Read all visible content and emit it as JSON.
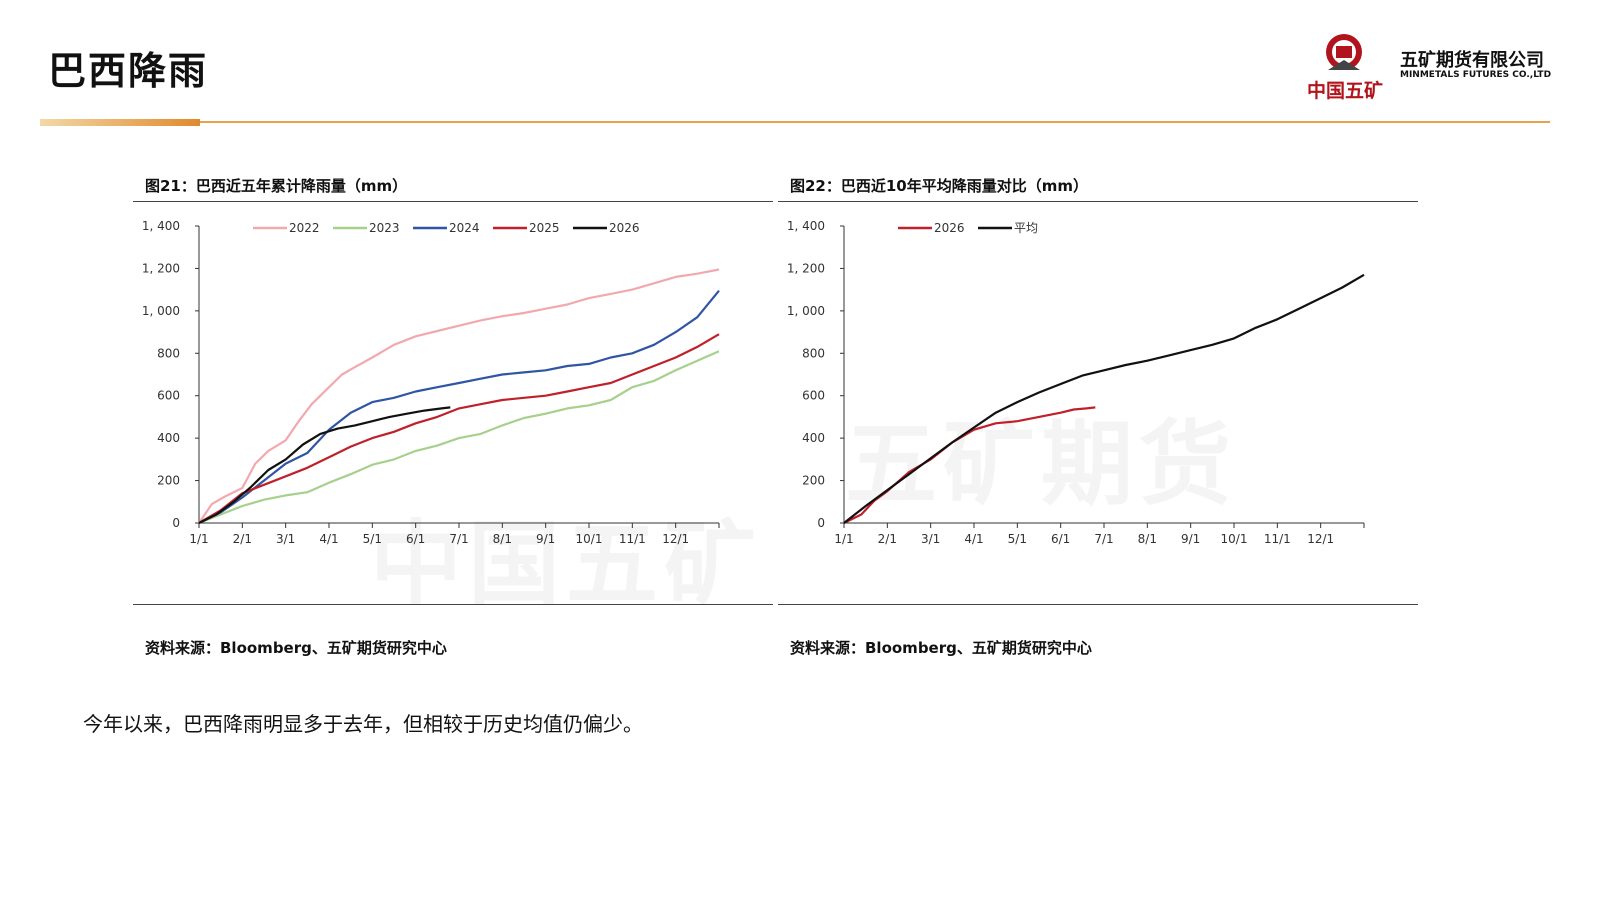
{
  "header": {
    "title": "巴西降雨"
  },
  "logo": {
    "cn": "中国五矿",
    "company_cn": "五矿期货有限公司",
    "company_en": "MINMETALS FUTURES CO.,LTD",
    "accent": "#b0141c"
  },
  "watermark": {
    "left": "中国五矿",
    "right": "五矿期货"
  },
  "charts": [
    {
      "title": "图21：巴西近五年累计降雨量（mm）",
      "source": "资料来源：Bloomberg、五矿期货研究中心"
    },
    {
      "title": "图22：巴西近10年平均降雨量对比（mm）",
      "source": "资料来源：Bloomberg、五矿期货研究中心"
    }
  ],
  "summary": "今年以来，巴西降雨明显多于去年，但相较于历史均值仍偏少。",
  "chart_data": [
    {
      "type": "line",
      "categories": [
        "1/1",
        "2/1",
        "3/1",
        "4/1",
        "5/1",
        "6/1",
        "7/1",
        "8/1",
        "9/1",
        "10/1",
        "11/1",
        "12/1"
      ],
      "ylim": [
        0,
        1400
      ],
      "yticks": [
        "0",
        "200",
        "400",
        "600",
        "800",
        "1, 000",
        "1, 200",
        "1, 400"
      ],
      "legend": "top",
      "series": [
        {
          "name": "2022",
          "color": "#f2a9ae",
          "x": [
            0,
            0.3,
            0.6,
            1,
            1.3,
            1.6,
            2,
            2.3,
            2.6,
            3,
            3.3,
            3.6,
            4,
            4.5,
            5,
            5.5,
            6,
            6.5,
            7,
            7.5,
            8,
            8.5,
            9,
            9.5,
            10,
            10.5,
            11,
            11.5,
            12
          ],
          "y": [
            0,
            90,
            125,
            165,
            280,
            340,
            390,
            480,
            560,
            640,
            700,
            735,
            780,
            840,
            880,
            905,
            930,
            955,
            975,
            990,
            1010,
            1030,
            1060,
            1080,
            1100,
            1130,
            1160,
            1175,
            1195
          ]
        },
        {
          "name": "2023",
          "color": "#a7d08c",
          "x": [
            0,
            1,
            1.5,
            2,
            2.5,
            3,
            3.5,
            4,
            4.5,
            5,
            5.5,
            6,
            6.5,
            7,
            7.5,
            8,
            8.5,
            9,
            9.5,
            10,
            10.5,
            11,
            11.5,
            12
          ],
          "y": [
            0,
            80,
            110,
            130,
            145,
            190,
            230,
            275,
            300,
            340,
            365,
            400,
            420,
            460,
            495,
            515,
            540,
            555,
            580,
            640,
            670,
            720,
            765,
            810
          ]
        },
        {
          "name": "2024",
          "color": "#2f55a4",
          "x": [
            0,
            0.5,
            1,
            1.5,
            2,
            2.5,
            3,
            3.5,
            4,
            4.5,
            5,
            5.5,
            6,
            6.5,
            7,
            7.5,
            8,
            8.5,
            9,
            9.5,
            10,
            10.5,
            11,
            11.5,
            12
          ],
          "y": [
            0,
            50,
            120,
            200,
            280,
            330,
            440,
            520,
            570,
            590,
            620,
            640,
            660,
            680,
            700,
            710,
            720,
            740,
            750,
            780,
            800,
            840,
            900,
            970,
            1095
          ]
        },
        {
          "name": "2025",
          "color": "#c0202a",
          "x": [
            0,
            0.5,
            1,
            1.5,
            2,
            2.5,
            3,
            3.5,
            4,
            4.5,
            5,
            5.5,
            6,
            6.5,
            7,
            7.5,
            8,
            8.5,
            9,
            9.5,
            10,
            10.5,
            11,
            11.5,
            12
          ],
          "y": [
            0,
            60,
            140,
            180,
            220,
            260,
            310,
            360,
            400,
            430,
            470,
            500,
            540,
            560,
            580,
            590,
            600,
            620,
            640,
            660,
            700,
            740,
            780,
            830,
            890
          ]
        },
        {
          "name": "2026",
          "color": "#111111",
          "x": [
            0,
            0.4,
            0.8,
            1.2,
            1.6,
            2,
            2.4,
            2.8,
            3.2,
            3.6,
            4,
            4.4,
            4.8,
            5.2,
            5.6,
            5.8
          ],
          "y": [
            0,
            40,
            100,
            170,
            250,
            300,
            370,
            420,
            445,
            460,
            480,
            500,
            515,
            530,
            540,
            545
          ]
        }
      ]
    },
    {
      "type": "line",
      "categories": [
        "1/1",
        "2/1",
        "3/1",
        "4/1",
        "5/1",
        "6/1",
        "7/1",
        "8/1",
        "9/1",
        "10/1",
        "11/1",
        "12/1"
      ],
      "ylim": [
        0,
        1400
      ],
      "yticks": [
        "0",
        "200",
        "400",
        "600",
        "800",
        "1, 000",
        "1, 200",
        "1, 400"
      ],
      "legend": "top",
      "series": [
        {
          "name": "2026",
          "color": "#c0202a",
          "x": [
            0,
            0.4,
            0.7,
            1,
            1.5,
            2,
            2.5,
            3,
            3.5,
            4,
            4.5,
            5,
            5.3,
            5.6,
            5.8
          ],
          "y": [
            0,
            40,
            105,
            150,
            240,
            300,
            380,
            440,
            470,
            480,
            500,
            520,
            535,
            540,
            545
          ]
        },
        {
          "name": "平均",
          "color": "#111111",
          "x": [
            0,
            0.5,
            1,
            1.5,
            2,
            2.5,
            3,
            3.5,
            4,
            4.5,
            5,
            5.5,
            6,
            6.5,
            7,
            7.5,
            8,
            8.5,
            9,
            9.5,
            10,
            10.5,
            11,
            11.5,
            12
          ],
          "y": [
            0,
            80,
            155,
            230,
            305,
            380,
            450,
            520,
            570,
            615,
            655,
            695,
            720,
            745,
            765,
            790,
            815,
            840,
            870,
            920,
            960,
            1010,
            1060,
            1110,
            1170
          ]
        }
      ]
    }
  ]
}
